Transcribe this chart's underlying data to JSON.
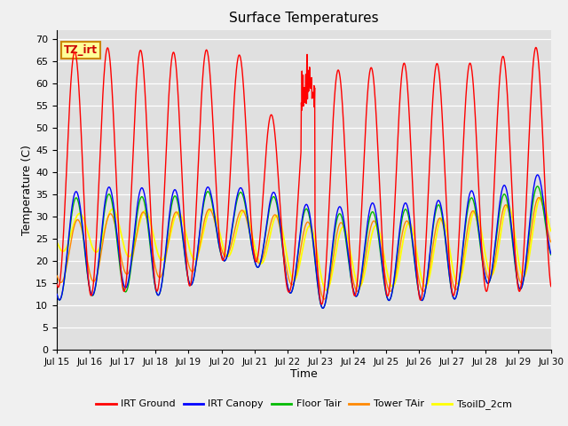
{
  "title": "Surface Temperatures",
  "xlabel": "Time",
  "ylabel": "Temperature (C)",
  "ylim": [
    0,
    72
  ],
  "yticks": [
    0,
    5,
    10,
    15,
    20,
    25,
    30,
    35,
    40,
    45,
    50,
    55,
    60,
    65,
    70
  ],
  "x_labels": [
    "Jul 15",
    "Jul 16",
    "Jul 17",
    "Jul 18",
    "Jul 19",
    "Jul 20",
    "Jul 21",
    "Jul 22",
    "Jul 23",
    "Jul 24",
    "Jul 25",
    "Jul 26",
    "Jul 27",
    "Jul 28",
    "Jul 29",
    "Jul 30"
  ],
  "legend_labels": [
    "IRT Ground",
    "IRT Canopy",
    "Floor Tair",
    "Tower TAir",
    "TsoilD_2cm"
  ],
  "colors": {
    "IRT Ground": "#ff0000",
    "IRT Canopy": "#0000ff",
    "Floor Tair": "#00bb00",
    "Tower TAir": "#ff8800",
    "TsoilD_2cm": "#ffff00"
  },
  "annotation_text": "TZ_irt",
  "annotation_bg": "#ffff99",
  "annotation_border": "#cc8800",
  "fig_bg_color": "#f0f0f0",
  "plot_bg_color": "#e0e0e0",
  "grid_color": "#ffffff",
  "linewidth": 1.0,
  "n_days": 15,
  "pts_per_day": 96
}
